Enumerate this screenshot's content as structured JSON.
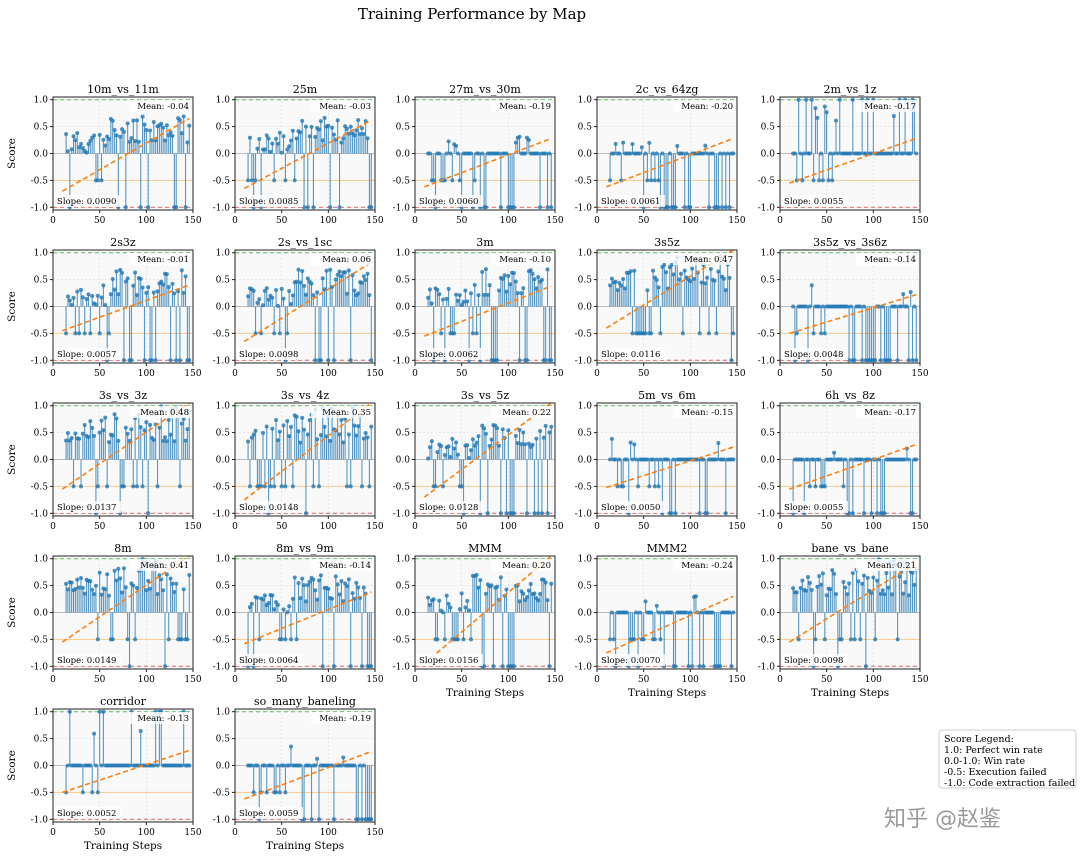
{
  "title": "Training Performance by Map",
  "score_label": "Score",
  "steps_label": "Training Steps",
  "mean_prefix": "Mean: ",
  "slope_prefix": "Slope: ",
  "legend": {
    "title": "Score Legend:",
    "items": [
      "1.0: Perfect win rate",
      "0.0-1.0: Win rate",
      "-0.5: Execution failed",
      "-1.0: Code extraction failed"
    ]
  },
  "watermark": "知乎 @赵鉴",
  "colors": {
    "stem": "#1f77b4",
    "trend": "#ff7f0e",
    "ref_high": "#2ca02c",
    "ref_mid": "#ffb347",
    "ref_low": "#d62728",
    "panel_bg": "#f9f9f9",
    "grid": "#dddddd"
  },
  "chart_data": {
    "type": "scatter",
    "style": "stem plot per map with dashed linear trend line",
    "xlim": [
      0,
      150
    ],
    "ylim": [
      -1.05,
      1.05
    ],
    "xticks": [
      0,
      50,
      100,
      150
    ],
    "yticks": [
      -1.0,
      -0.5,
      0.0,
      0.5,
      1.0
    ],
    "ytick_labels": [
      "-1.0",
      "-0.5",
      "0.0",
      "0.5",
      "1.0"
    ],
    "reference_lines": [
      1.0,
      -0.5,
      -1.0
    ],
    "grid": true,
    "legend_position": "right",
    "panels": [
      {
        "map": "10m_vs_11m",
        "mean": "-0.04",
        "slope": "0.0090",
        "trend": [
          -0.7,
          0.65
        ],
        "pattern": "rise"
      },
      {
        "map": "25m",
        "mean": "-0.03",
        "slope": "0.0085",
        "trend": [
          -0.65,
          0.62
        ],
        "pattern": "rise"
      },
      {
        "map": "27m_vs_30m",
        "mean": "-0.19",
        "slope": "0.0060",
        "trend": [
          -0.62,
          0.28
        ],
        "pattern": "flat"
      },
      {
        "map": "2c_vs_64zg",
        "mean": "-0.20",
        "slope": "0.0061",
        "trend": [
          -0.62,
          0.28
        ],
        "pattern": "flat"
      },
      {
        "map": "2m_vs_1z",
        "mean": "-0.17",
        "slope": "0.0055",
        "trend": [
          -0.55,
          0.28
        ],
        "pattern": "spiky"
      },
      {
        "map": "2s3z",
        "mean": "-0.01",
        "slope": "0.0057",
        "trend": [
          -0.45,
          0.4
        ],
        "pattern": "rise"
      },
      {
        "map": "2s_vs_1sc",
        "mean": "0.06",
        "slope": "0.0098",
        "trend": [
          -0.65,
          0.82
        ],
        "pattern": "rise"
      },
      {
        "map": "3m",
        "mean": "-0.10",
        "slope": "0.0062",
        "trend": [
          -0.55,
          0.38
        ],
        "pattern": "rise"
      },
      {
        "map": "3s5z",
        "mean": "0.47",
        "slope": "0.0116",
        "trend": [
          -0.4,
          1.05
        ],
        "pattern": "high"
      },
      {
        "map": "3s5z_vs_3s6z",
        "mean": "-0.14",
        "slope": "0.0048",
        "trend": [
          -0.5,
          0.22
        ],
        "pattern": "flat"
      },
      {
        "map": "3s_vs_3z",
        "mean": "0.48",
        "slope": "0.0137",
        "trend": [
          -0.55,
          1.05
        ],
        "pattern": "high"
      },
      {
        "map": "3s_vs_4z",
        "mean": "0.35",
        "slope": "0.0148",
        "trend": [
          -0.75,
          1.05
        ],
        "pattern": "high"
      },
      {
        "map": "3s_vs_5z",
        "mean": "0.22",
        "slope": "0.0128",
        "trend": [
          -0.7,
          1.05
        ],
        "pattern": "rise"
      },
      {
        "map": "5m_vs_6m",
        "mean": "-0.15",
        "slope": "0.0050",
        "trend": [
          -0.52,
          0.23
        ],
        "pattern": "flat"
      },
      {
        "map": "6h_vs_8z",
        "mean": "-0.17",
        "slope": "0.0055",
        "trend": [
          -0.55,
          0.28
        ],
        "pattern": "flat"
      },
      {
        "map": "8m",
        "mean": "0.41",
        "slope": "0.0149",
        "trend": [
          -0.55,
          1.05
        ],
        "pattern": "high"
      },
      {
        "map": "8m_vs_9m",
        "mean": "-0.14",
        "slope": "0.0064",
        "trend": [
          -0.58,
          0.38
        ],
        "pattern": "rise"
      },
      {
        "map": "MMM",
        "mean": "0.20",
        "slope": "0.0156",
        "trend": [
          -0.95,
          1.05
        ],
        "pattern": "rise"
      },
      {
        "map": "MMM2",
        "mean": "-0.24",
        "slope": "0.0070",
        "trend": [
          -0.75,
          0.3
        ],
        "pattern": "flat"
      },
      {
        "map": "bane_vs_bane",
        "mean": "0.21",
        "slope": "0.0098",
        "trend": [
          -0.55,
          0.92
        ],
        "pattern": "high"
      },
      {
        "map": "corridor",
        "mean": "-0.13",
        "slope": "0.0052",
        "trend": [
          -0.5,
          0.28
        ],
        "pattern": "spiky"
      },
      {
        "map": "so_many_baneling",
        "mean": "-0.19",
        "slope": "0.0059",
        "trend": [
          -0.62,
          0.26
        ],
        "pattern": "flat"
      }
    ]
  }
}
